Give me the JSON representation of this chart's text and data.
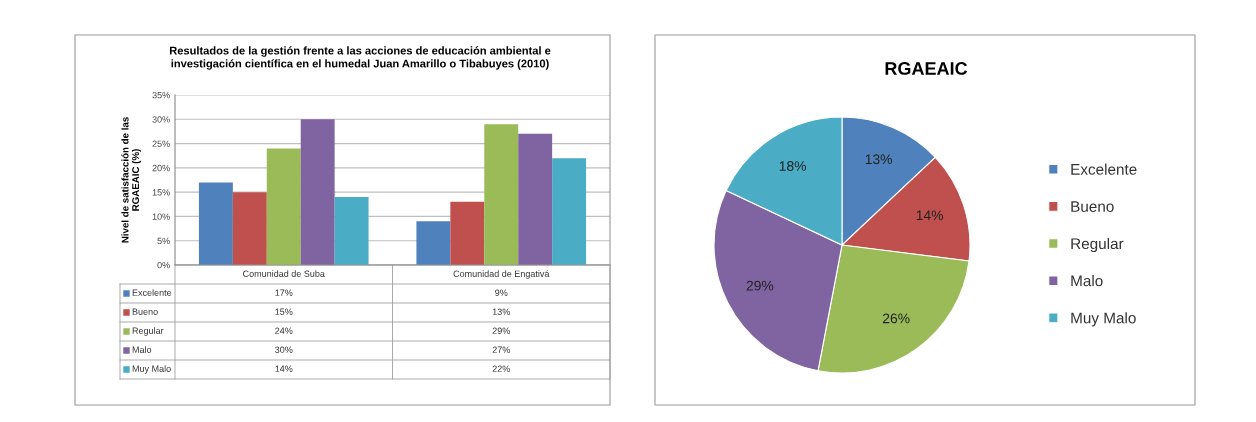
{
  "chart_data": [
    {
      "type": "bar",
      "title": "Resultados de la gestión frente a las acciones de educación ambiental e investigación científica en el humedal Juan Amarillo o Tibabuyes (2010)",
      "ylabel": "Nivel de satisfacción de las RGAEAIC (%)",
      "categories": [
        "Comunidad de Suba",
        "Comunidad de Engativá"
      ],
      "series": [
        {
          "name": "Excelente",
          "color": "#4f81bd",
          "values": [
            17,
            9
          ],
          "value_labels": [
            "17%",
            "9%"
          ]
        },
        {
          "name": "Bueno",
          "color": "#c0504d",
          "values": [
            15,
            13
          ],
          "value_labels": [
            "15%",
            "13%"
          ]
        },
        {
          "name": "Regular",
          "color": "#9bbb59",
          "values": [
            24,
            29
          ],
          "value_labels": [
            "24%",
            "29%"
          ]
        },
        {
          "name": "Malo",
          "color": "#8064a2",
          "values": [
            30,
            27
          ],
          "value_labels": [
            "30%",
            "27%"
          ]
        },
        {
          "name": "Muy Malo",
          "color": "#4bacc6",
          "values": [
            14,
            22
          ],
          "value_labels": [
            "14%",
            "22%"
          ]
        }
      ],
      "ylim": [
        0,
        35
      ],
      "yticks": [
        {
          "value": 0,
          "label": "0%"
        },
        {
          "value": 5,
          "label": "5%"
        },
        {
          "value": 10,
          "label": "10%"
        },
        {
          "value": 15,
          "label": "15%"
        },
        {
          "value": 20,
          "label": "20%"
        },
        {
          "value": 25,
          "label": "25%"
        },
        {
          "value": 30,
          "label": "30%"
        },
        {
          "value": 35,
          "label": "35%"
        }
      ],
      "grid": "y",
      "legend": "bottom"
    },
    {
      "type": "pie",
      "title": "RGAEAIC",
      "categories": [
        "Excelente",
        "Bueno",
        "Regular",
        "Malo",
        "Muy Malo"
      ],
      "values": [
        13,
        14,
        26,
        29,
        18
      ],
      "value_labels": [
        "13%",
        "14%",
        "26%",
        "29%",
        "18%"
      ],
      "colors": [
        "#4f81bd",
        "#c0504d",
        "#9bbb59",
        "#8064a2",
        "#4bacc6"
      ],
      "legend": "right"
    }
  ]
}
